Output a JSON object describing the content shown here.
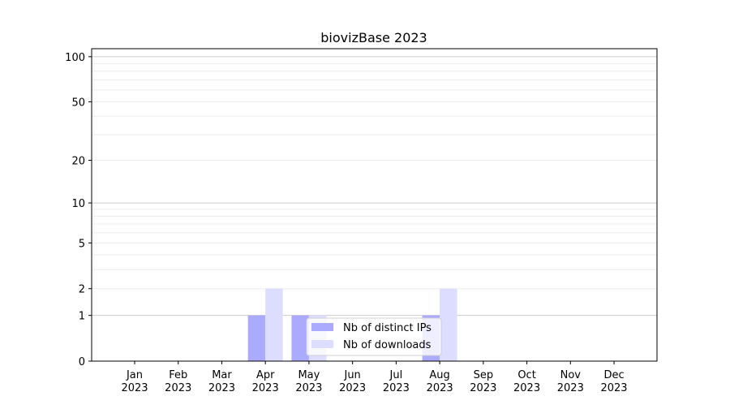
{
  "chart_data": {
    "type": "bar",
    "title": "biovizBase 2023",
    "xlabel": "",
    "ylabel": "",
    "yscale": "log(1+y)",
    "ylim": [
      0,
      113
    ],
    "yticks": [
      0,
      1,
      2,
      5,
      10,
      20,
      50,
      100
    ],
    "grid": true,
    "legend_position": "lower-center",
    "categories": [
      [
        "Jan",
        "2023"
      ],
      [
        "Feb",
        "2023"
      ],
      [
        "Mar",
        "2023"
      ],
      [
        "Apr",
        "2023"
      ],
      [
        "May",
        "2023"
      ],
      [
        "Jun",
        "2023"
      ],
      [
        "Jul",
        "2023"
      ],
      [
        "Aug",
        "2023"
      ],
      [
        "Sep",
        "2023"
      ],
      [
        "Oct",
        "2023"
      ],
      [
        "Nov",
        "2023"
      ],
      [
        "Dec",
        "2023"
      ]
    ],
    "series": [
      {
        "name": "Nb of distinct IPs",
        "color": "#aaaaff",
        "values": [
          0,
          0,
          0,
          1,
          1,
          0,
          0,
          1,
          0,
          0,
          0,
          0
        ]
      },
      {
        "name": "Nb of downloads",
        "color": "#ddddff",
        "values": [
          0,
          0,
          0,
          2,
          1,
          0,
          0,
          2,
          0,
          0,
          0,
          0
        ]
      }
    ]
  }
}
